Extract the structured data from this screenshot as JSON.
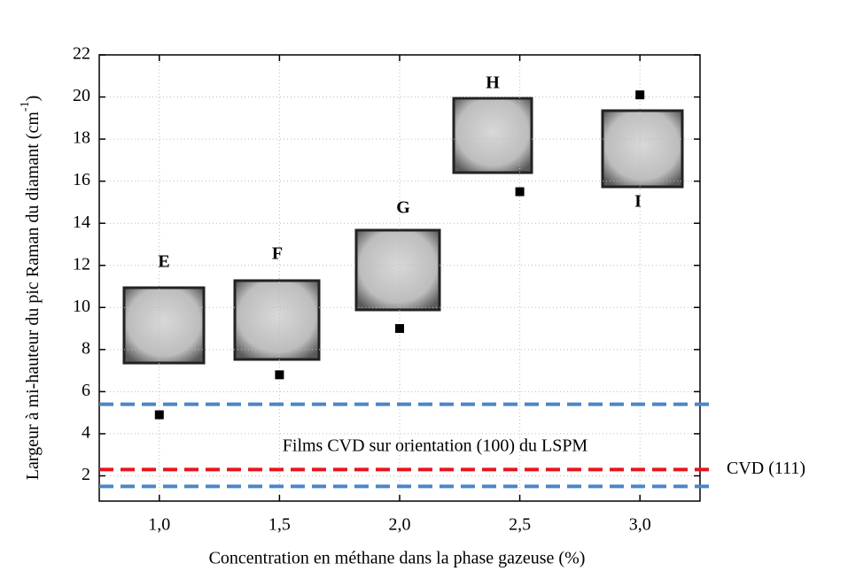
{
  "chart_data": {
    "type": "scatter",
    "ylabel": "Largeur à mi-hauteur du pic Raman du diamant (cm",
    "ylabel_superscript": "-1",
    "ylabel_end": ")",
    "xlabel": "Concentration en méthane dans la phase gazeuse (%)",
    "x": [
      1.0,
      1.5,
      2.0,
      2.5,
      3.0
    ],
    "series": [
      {
        "color": "#000000",
        "values": [
          4.9,
          6.8,
          9.0,
          15.5,
          20.1
        ]
      }
    ],
    "point_labels": [
      "E",
      "F",
      "G",
      "H",
      "I"
    ],
    "xlim": [
      0.75,
      3.25
    ],
    "ylim": [
      0.8,
      22
    ],
    "xticks": [
      {
        "value": 1.0,
        "label": "1,0"
      },
      {
        "value": 1.5,
        "label": "1,5"
      },
      {
        "value": 2.0,
        "label": "2,0"
      },
      {
        "value": 2.5,
        "label": "2,5"
      },
      {
        "value": 3.0,
        "label": "3,0"
      }
    ],
    "yticks": [
      2,
      4,
      6,
      8,
      10,
      12,
      14,
      16,
      18,
      20,
      22
    ],
    "grid": true,
    "reference_lines": [
      {
        "value": 5.4,
        "color": "#4a86c8"
      },
      {
        "value": 1.5,
        "color": "#4a86c8"
      },
      {
        "value": 2.3,
        "color": "#e8141c",
        "label": "CVD (111)"
      }
    ],
    "reference_band_label": "Films CVD sur orientation (100) du LSPM",
    "reference_band_color": "#4a86c8"
  }
}
